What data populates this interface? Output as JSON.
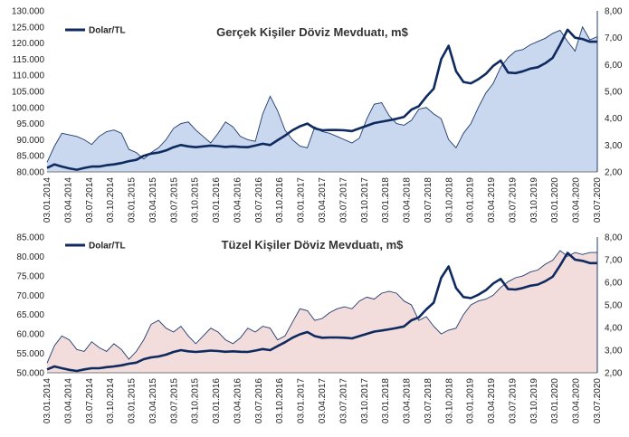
{
  "chart_data": [
    {
      "type": "area",
      "title": "Gerçek Kişiler Döviz Mevduatı, m$",
      "legend": {
        "label": "Dolar/TL",
        "placement": "top-left"
      },
      "colors": {
        "area_fill": "#c9d8ee",
        "area_stroke": "#1f3b6e",
        "line": "#0f2a5e"
      },
      "ylim": [
        80000,
        130000
      ],
      "y2lim": [
        2,
        8
      ],
      "y_ticks": [
        "80.000",
        "85.000",
        "90.000",
        "95.000",
        "100.000",
        "105.000",
        "110.000",
        "115.000",
        "120.000",
        "125.000",
        "130.000"
      ],
      "y2_ticks": [
        "2,00",
        "3,00",
        "4,00",
        "5,00",
        "6,00",
        "7,00",
        "8,00"
      ],
      "x_ticks": [
        "03.01.2014",
        "03.04.2014",
        "03.07.2014",
        "03.10.2014",
        "03.01.2015",
        "03.04.2015",
        "03.07.2015",
        "03.10.2015",
        "03.01.2016",
        "03.04.2016",
        "03.07.2016",
        "03.10.2016",
        "03.01.2017",
        "03.04.2017",
        "03.07.2017",
        "03.10.2017",
        "03.01.2018",
        "03.04.2018",
        "03.07.2018",
        "03.10.2018",
        "03.01.2019",
        "03.04.2019",
        "03.07.2019",
        "03.10.2019",
        "03.01.2020",
        "03.04.2020",
        "03.07.2020"
      ],
      "series": [
        {
          "axis": "left",
          "values": [
            83000,
            88000,
            92000,
            91500,
            91000,
            90000,
            88500,
            91000,
            92500,
            93000,
            92000,
            87000,
            86000,
            84000,
            86000,
            87500,
            90000,
            93500,
            95000,
            95500,
            93000,
            91000,
            89000,
            92000,
            95500,
            94000,
            91000,
            90000,
            89500,
            98000,
            103500,
            99000,
            93000,
            90000,
            88000,
            87500,
            94000,
            92500,
            92000,
            91000,
            90000,
            89000,
            90500,
            96500,
            101000,
            101500,
            97500,
            95000,
            94500,
            96000,
            99500,
            100000,
            98000,
            96500,
            90000,
            87500,
            92000,
            95000,
            100000,
            104500,
            107500,
            112500,
            115500,
            117500,
            118000,
            119500,
            120500,
            121500,
            123000,
            124000,
            120500,
            117500,
            125000,
            121000,
            122000
          ]
        },
        {
          "axis": "right",
          "name": "Dolar/TL",
          "values": [
            2.15,
            2.28,
            2.2,
            2.13,
            2.08,
            2.15,
            2.2,
            2.2,
            2.25,
            2.28,
            2.33,
            2.4,
            2.45,
            2.6,
            2.68,
            2.72,
            2.8,
            2.92,
            3.0,
            2.95,
            2.92,
            2.95,
            2.98,
            2.96,
            2.93,
            2.95,
            2.93,
            2.92,
            2.98,
            3.05,
            3.0,
            3.18,
            3.35,
            3.55,
            3.7,
            3.8,
            3.62,
            3.55,
            3.56,
            3.56,
            3.55,
            3.52,
            3.62,
            3.72,
            3.82,
            3.87,
            3.92,
            3.98,
            4.05,
            4.32,
            4.45,
            4.8,
            5.1,
            6.2,
            6.7,
            5.75,
            5.35,
            5.3,
            5.45,
            5.65,
            5.95,
            6.15,
            5.7,
            5.68,
            5.75,
            5.85,
            5.9,
            6.05,
            6.25,
            6.75,
            7.3,
            7.0,
            6.95,
            6.85,
            6.85
          ]
        }
      ]
    },
    {
      "type": "area",
      "title": "Tüzel Kişiler Döviz Mevduatı, m$",
      "legend": {
        "label": "Dolar/TL",
        "placement": "top-left"
      },
      "colors": {
        "area_fill": "#f3dcdc",
        "area_stroke": "#1f3b6e",
        "line": "#0f2a5e"
      },
      "ylim": [
        50000,
        85000
      ],
      "y2lim": [
        2,
        8
      ],
      "y_ticks": [
        "50.000",
        "55.000",
        "60.000",
        "65.000",
        "70.000",
        "75.000",
        "80.000",
        "85.000"
      ],
      "y2_ticks": [
        "2,00",
        "3,00",
        "4,00",
        "5,00",
        "6,00",
        "7,00",
        "8,00"
      ],
      "x_ticks": [
        "03.01.2014",
        "03.04.2014",
        "03.07.2014",
        "03.10.2014",
        "03.01.2015",
        "03.04.2015",
        "03.07.2015",
        "03.10.2015",
        "03.01.2016",
        "03.04.2016",
        "03.07.2016",
        "03.10.2016",
        "03.01.2017",
        "03.04.2017",
        "03.07.2017",
        "03.10.2017",
        "03.01.2018",
        "03.04.2018",
        "03.07.2018",
        "03.10.2018",
        "03.01.2019",
        "03.04.2019",
        "03.07.2019",
        "03.10.2019",
        "03.01.2020",
        "03.04.2020",
        "03.07.2020"
      ],
      "series": [
        {
          "axis": "left",
          "values": [
            52500,
            57000,
            59500,
            58500,
            56000,
            55500,
            58000,
            56500,
            55500,
            57500,
            56000,
            53500,
            55500,
            58500,
            62500,
            63500,
            61500,
            60500,
            62000,
            59500,
            57500,
            59500,
            61500,
            60500,
            58500,
            57500,
            59000,
            61500,
            60500,
            62000,
            61500,
            58500,
            59500,
            63000,
            66500,
            66000,
            63500,
            64000,
            65500,
            66500,
            67000,
            66500,
            68500,
            69500,
            69000,
            70500,
            71000,
            70500,
            68500,
            67500,
            63500,
            64500,
            62000,
            60000,
            61000,
            61500,
            65000,
            67500,
            68500,
            69000,
            70000,
            72000,
            73500,
            74500,
            75000,
            76000,
            76500,
            78000,
            79000,
            81500,
            80000,
            81000,
            80500,
            81000,
            81000
          ]
        },
        {
          "axis": "right",
          "name": "Dolar/TL",
          "values": [
            2.15,
            2.28,
            2.2,
            2.13,
            2.08,
            2.15,
            2.2,
            2.2,
            2.25,
            2.28,
            2.33,
            2.4,
            2.45,
            2.6,
            2.68,
            2.72,
            2.8,
            2.92,
            3.0,
            2.95,
            2.92,
            2.95,
            2.98,
            2.96,
            2.93,
            2.95,
            2.93,
            2.92,
            2.98,
            3.05,
            3.0,
            3.18,
            3.35,
            3.55,
            3.7,
            3.8,
            3.62,
            3.55,
            3.56,
            3.56,
            3.55,
            3.52,
            3.62,
            3.72,
            3.82,
            3.87,
            3.92,
            3.98,
            4.05,
            4.32,
            4.45,
            4.8,
            5.1,
            6.2,
            6.7,
            5.75,
            5.35,
            5.3,
            5.45,
            5.65,
            5.95,
            6.15,
            5.7,
            5.68,
            5.75,
            5.85,
            5.9,
            6.05,
            6.25,
            6.75,
            7.3,
            7.0,
            6.95,
            6.85,
            6.85
          ]
        }
      ]
    }
  ]
}
